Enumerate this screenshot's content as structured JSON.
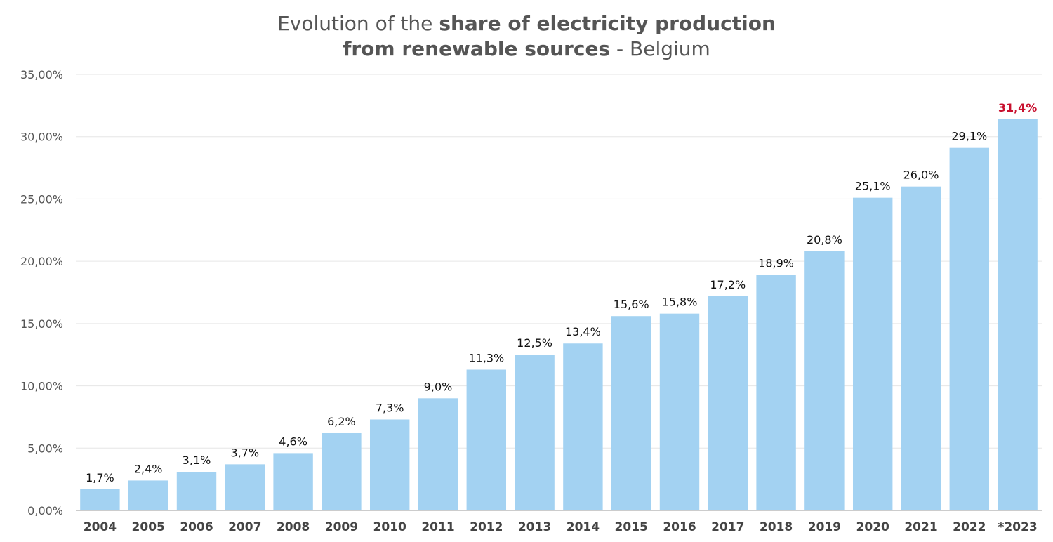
{
  "title": {
    "part1": "Evolution of the ",
    "part2_bold": "share of electricity production",
    "line2_bold": "from renewable sources",
    "line2_rest": " - Belgium"
  },
  "colors": {
    "bar": "#a3d2f2",
    "highlight_label": "#c8102e",
    "title": "#555555"
  },
  "chart_data": {
    "type": "bar",
    "title": "Evolution of the share of electricity production from renewable sources - Belgium",
    "xlabel": "",
    "ylabel": "",
    "categories": [
      "2004",
      "2005",
      "2006",
      "2007",
      "2008",
      "2009",
      "2010",
      "2011",
      "2012",
      "2013",
      "2014",
      "2015",
      "2016",
      "2017",
      "2018",
      "2019",
      "2020",
      "2021",
      "2022",
      "*2023"
    ],
    "values": [
      1.7,
      2.4,
      3.1,
      3.7,
      4.6,
      6.2,
      7.3,
      9.0,
      11.3,
      12.5,
      13.4,
      15.6,
      15.8,
      17.2,
      18.9,
      20.8,
      25.1,
      26.0,
      29.1,
      31.4
    ],
    "data_labels": [
      "1,7%",
      "2,4%",
      "3,1%",
      "3,7%",
      "4,6%",
      "6,2%",
      "7,3%",
      "9,0%",
      "11,3%",
      "12,5%",
      "13,4%",
      "15,6%",
      "15,8%",
      "17,2%",
      "18,9%",
      "20,8%",
      "25,1%",
      "26,0%",
      "29,1%",
      "31,4%"
    ],
    "highlighted_index": 19,
    "ylim": [
      0,
      35
    ],
    "yticks": [
      0,
      5,
      10,
      15,
      20,
      25,
      30,
      35
    ],
    "ytick_labels": [
      "0,00%",
      "5,00%",
      "10,00%",
      "15,00%",
      "20,00%",
      "25,00%",
      "30,00%",
      "35,00%"
    ],
    "grid": true,
    "legend": "none"
  }
}
